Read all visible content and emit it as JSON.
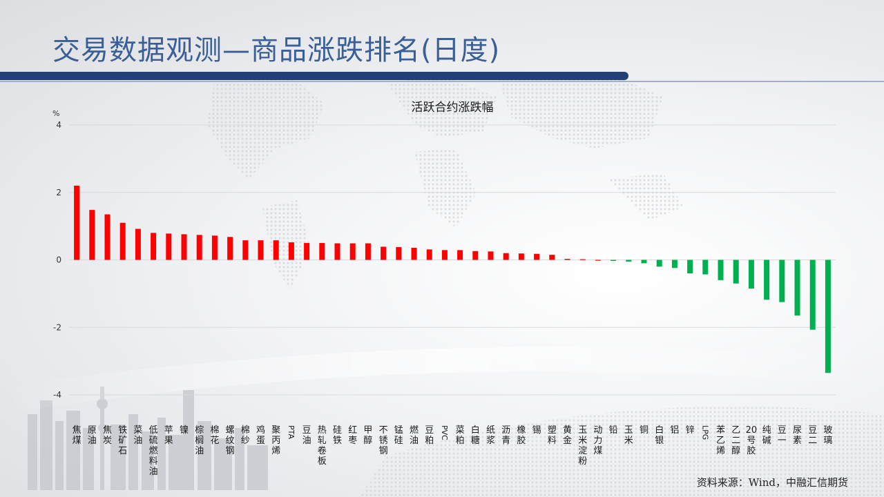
{
  "slide": {
    "title": "交易数据观测—商品涨跌排名(日度)",
    "source": "资料来源：Wind，中融汇信期货"
  },
  "colors": {
    "up": "#ff0000",
    "down": "#00b050",
    "title": "#3a5e96",
    "bar": "#243f74"
  },
  "chart_data": {
    "type": "bar",
    "title": "活跃合约涨跌幅",
    "unit": "%",
    "ylim": [
      -4,
      4
    ],
    "yticks": [
      4,
      2,
      0,
      -2,
      -4
    ],
    "grid": true,
    "categories": [
      "焦煤",
      "原油",
      "焦炭",
      "铁矿石",
      "菜油",
      "低硫燃料油",
      "苹果",
      "镍",
      "棕榈油",
      "棉花",
      "螺纹钢",
      "棉纱",
      "鸡蛋",
      "聚丙烯",
      "PTA",
      "豆油",
      "热轧卷板",
      "硅铁",
      "红枣",
      "甲醇",
      "不锈钢",
      "锰硅",
      "燃油",
      "豆粕",
      "PVC",
      "菜粕",
      "白糖",
      "纸浆",
      "沥青",
      "橡胶",
      "锡",
      "塑料",
      "黄金",
      "玉米淀粉",
      "动力煤",
      "铅",
      "玉米",
      "铜",
      "白银",
      "铝",
      "锌",
      "LPG",
      "苯乙烯",
      "乙二醇",
      "20号胶",
      "纯碱",
      "豆一",
      "尿素",
      "豆二",
      "玻璃"
    ],
    "values": [
      2.2,
      1.48,
      1.35,
      1.1,
      0.92,
      0.8,
      0.78,
      0.76,
      0.74,
      0.72,
      0.68,
      0.58,
      0.58,
      0.58,
      0.52,
      0.5,
      0.5,
      0.49,
      0.49,
      0.49,
      0.39,
      0.38,
      0.36,
      0.31,
      0.29,
      0.29,
      0.26,
      0.25,
      0.2,
      0.19,
      0.18,
      0.15,
      0.03,
      0.02,
      0.0,
      -0.03,
      -0.05,
      -0.1,
      -0.2,
      -0.24,
      -0.4,
      -0.43,
      -0.6,
      -0.7,
      -0.85,
      -1.18,
      -1.25,
      -1.65,
      -2.07,
      -3.35
    ]
  }
}
